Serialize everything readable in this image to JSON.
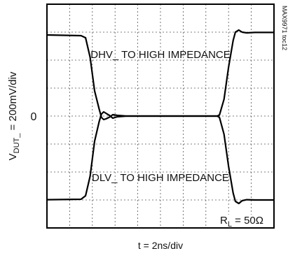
{
  "chart_data": {
    "type": "line",
    "title": "",
    "xlabel": "t = 2ns/div",
    "ylabel": {
      "main": "V",
      "sub": "DUT_",
      "rest": " = 200mV/div"
    },
    "x_unit": "ns",
    "y_unit": "mV",
    "xlim": [
      0,
      20
    ],
    "ylim": [
      -800,
      800
    ],
    "y_tick_labels": [
      {
        "label": "0",
        "y": 0
      }
    ],
    "grid": true,
    "grid_divisions": {
      "x": 10,
      "y": 8
    },
    "annotations": [
      {
        "id": "dhv",
        "text": "DHV_ TO HIGH IMPEDANCE",
        "x": 10,
        "y": 440
      },
      {
        "id": "dlv",
        "text": "DLV_ TO HIGH IMPEDANCE",
        "x": 10,
        "y": -440
      }
    ],
    "load_label": {
      "main": "R",
      "sub": "L",
      "rest": " = 50Ω"
    },
    "figure_id": "MAX9971 toc12",
    "series": [
      {
        "x": [
          0,
          3.0,
          3.4,
          3.8,
          4.2,
          4.6,
          4.8,
          5.0,
          5.2,
          5.5,
          5.8,
          6.2,
          7.0,
          9.0,
          11.0,
          13.0,
          15.0,
          15.2,
          15.6,
          16.0,
          16.4,
          16.6,
          16.9,
          17.2,
          17.6,
          18.3,
          20
        ],
        "y": [
          580,
          575,
          560,
          420,
          180,
          50,
          -10,
          -25,
          -20,
          -8,
          10,
          5,
          0,
          0,
          0,
          0,
          0,
          8,
          120,
          350,
          540,
          600,
          615,
          600,
          595,
          598,
          598
        ]
      },
      {
        "x": [
          0,
          3.0,
          3.4,
          3.8,
          4.2,
          4.6,
          4.8,
          5.0,
          5.2,
          5.5,
          5.8,
          6.2,
          7.0,
          9.0,
          11.0,
          13.0,
          15.0,
          15.2,
          15.6,
          16.0,
          16.4,
          16.6,
          16.9,
          17.2,
          17.6,
          18.3,
          20
        ],
        "y": [
          -598,
          -595,
          -570,
          -430,
          -180,
          -40,
          15,
          30,
          20,
          5,
          -15,
          -5,
          0,
          0,
          0,
          0,
          0,
          -10,
          -130,
          -360,
          -550,
          -610,
          -625,
          -605,
          -598,
          -600,
          -600
        ]
      }
    ]
  }
}
